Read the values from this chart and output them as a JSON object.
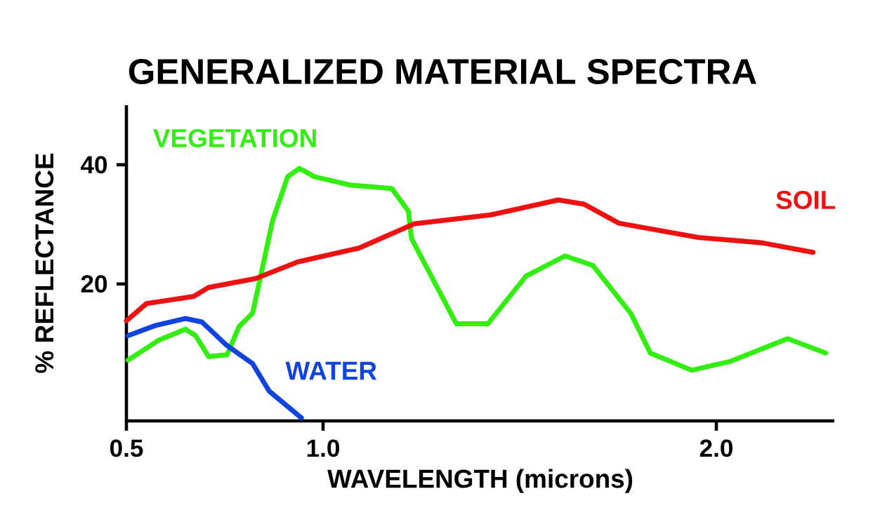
{
  "chart_data": {
    "type": "line",
    "title": "GENERALIZED MATERIAL SPECTRA",
    "xlabel": "WAVELENGTH (microns)",
    "ylabel": "% REFLECTANCE",
    "xlim": [
      0.5,
      2.3
    ],
    "ylim": [
      -3,
      50
    ],
    "xticks": [
      {
        "value": 0.5,
        "label": "0.5"
      },
      {
        "value": 1.0,
        "label": "1.0"
      },
      {
        "value": 2.0,
        "label": "2.0"
      }
    ],
    "yticks": [
      20,
      40
    ],
    "series": [
      {
        "name": "VEGETATION",
        "color": "#33ee11",
        "x": [
          0.504,
          0.581,
          0.65,
          0.676,
          0.709,
          0.756,
          0.786,
          0.821,
          0.872,
          0.91,
          0.94,
          0.978,
          1.069,
          1.175,
          1.217,
          1.225,
          1.339,
          1.419,
          1.516,
          1.615,
          1.686,
          1.783,
          1.832,
          1.937,
          2.036,
          2.181,
          2.278
        ],
        "values": [
          7.2,
          10.5,
          12.4,
          11.3,
          7.8,
          8.1,
          12.8,
          15.1,
          30.7,
          38.0,
          39.4,
          38.0,
          36.6,
          36.0,
          32.2,
          27.6,
          13.3,
          13.3,
          21.3,
          24.7,
          23.1,
          15.0,
          8.4,
          5.5,
          7.0,
          10.8,
          8.4
        ]
      },
      {
        "name": "SOIL",
        "color": "#ee1111",
        "x": [
          0.5,
          0.551,
          0.671,
          0.709,
          0.829,
          0.936,
          1.091,
          1.232,
          1.427,
          1.598,
          1.663,
          1.752,
          1.954,
          2.116,
          2.246
        ],
        "values": [
          13.8,
          16.7,
          17.9,
          19.4,
          20.9,
          23.7,
          26.0,
          30.1,
          31.6,
          34.1,
          33.4,
          30.2,
          27.8,
          26.9,
          25.3
        ]
      },
      {
        "name": "WATER",
        "color": "#1144dd",
        "x": [
          0.504,
          0.573,
          0.65,
          0.692,
          0.753,
          0.821,
          0.863,
          0.945
        ],
        "values": [
          11.3,
          13.0,
          14.2,
          13.6,
          9.8,
          6.6,
          2.0,
          -2.5
        ]
      }
    ]
  }
}
